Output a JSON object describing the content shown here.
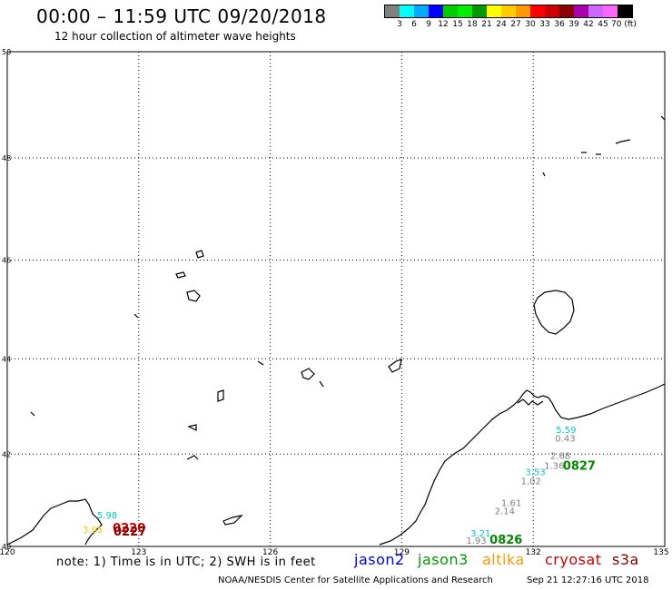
{
  "header": {
    "title": "00:00 – 11:59 UTC 09/20/2018",
    "subtitle": "12 hour collection of altimeter wave heights"
  },
  "legend": {
    "colors": [
      "#808080",
      "#00ffff",
      "#00aaff",
      "#0000ff",
      "#00cc00",
      "#00ee00",
      "#009900",
      "#ffff00",
      "#ffcc00",
      "#ff9900",
      "#ff0000",
      "#cc0000",
      "#880000",
      "#aa00aa",
      "#cc66ff",
      "#ff66ff",
      "#000000"
    ],
    "ticks": [
      "3",
      "6",
      "9",
      "12",
      "15",
      "18",
      "21",
      "24",
      "27",
      "30",
      "33",
      "36",
      "39",
      "42",
      "45",
      "70 (ft)"
    ]
  },
  "axes": {
    "x_ticks": [
      "120",
      "123",
      "126",
      "129",
      "132",
      "135"
    ],
    "y_ticks": [
      "50",
      "48",
      "46",
      "44",
      "42",
      "40"
    ]
  },
  "observations": [
    {
      "text": "5.59",
      "color": "#00cccc",
      "lon": 132.75,
      "lat": 42.45
    },
    {
      "text": "0.43",
      "color": "#808080",
      "lon": 132.73,
      "lat": 42.27
    },
    {
      "text": "2.68",
      "color": "#808080",
      "lon": 132.62,
      "lat": 41.9
    },
    {
      "text": "1.36",
      "color": "#808080",
      "lon": 132.48,
      "lat": 41.68
    },
    {
      "text": "3.53",
      "color": "#00cccc",
      "lon": 132.05,
      "lat": 41.55
    },
    {
      "text": "1.02",
      "color": "#808080",
      "lon": 131.95,
      "lat": 41.35
    },
    {
      "text": "0827",
      "color": "#008800",
      "lon": 133.05,
      "lat": 41.67
    },
    {
      "text": "1.61",
      "color": "#808080",
      "lon": 131.5,
      "lat": 40.88
    },
    {
      "text": "2.14",
      "color": "#808080",
      "lon": 131.35,
      "lat": 40.7
    },
    {
      "text": "3.21",
      "color": "#00cccc",
      "lon": 130.8,
      "lat": 40.22
    },
    {
      "text": "1.93",
      "color": "#808080",
      "lon": 130.7,
      "lat": 40.06
    },
    {
      "text": "0826",
      "color": "#008800",
      "lon": 131.38,
      "lat": 40.06
    },
    {
      "text": "5.98",
      "color": "#00cccc",
      "lon": 122.28,
      "lat": 40.62
    },
    {
      "text": "3.65",
      "color": "#ffcc00",
      "lon": 121.95,
      "lat": 40.3
    },
    {
      "text": "0220",
      "color": "#cc0000",
      "lon": 122.78,
      "lat": 40.32
    },
    {
      "text": "0227",
      "color": "#880000",
      "lon": 122.8,
      "lat": 40.24
    }
  ],
  "footer": {
    "note": "note: 1) Time is in UTC; 2) SWH is in feet",
    "satellites": [
      {
        "name": "jason2",
        "color": "#0000ee"
      },
      {
        "name": "jason3",
        "color": "#009900"
      },
      {
        "name": "altika",
        "color": "#ff9900"
      },
      {
        "name": "cryosat",
        "color": "#cc0000"
      },
      {
        "name": "s3a",
        "color": "#880000"
      }
    ],
    "credit": "NOAA/NESDIS Center for Satellite Applications and Research",
    "timestamp": "Sep 21 12:27:16 UTC 2018"
  }
}
